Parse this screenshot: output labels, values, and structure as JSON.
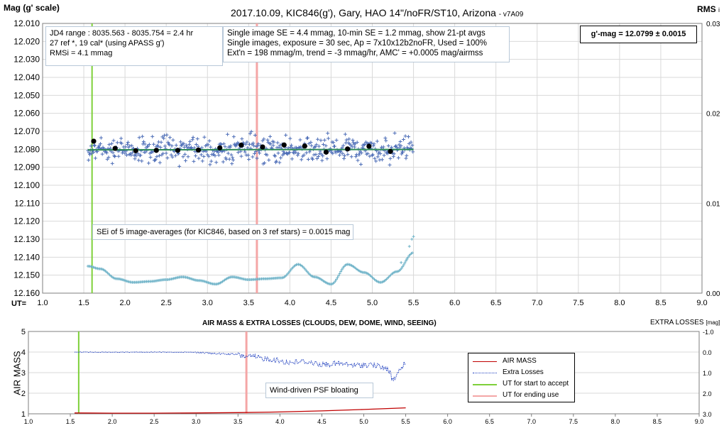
{
  "top_chart": {
    "title": "2017.10.09,  KIC846(g'),  Gary,  HAO  14\"/noFR/ST10,  Arizona",
    "version": "- v7A09",
    "y_left_label": "Mag (g' scale)",
    "y_right_label": "RMS",
    "y_right_label_suffix": "i",
    "x_label": "UT=",
    "info_box_1": [
      "JD4 range : 8035.563 - 8035.754 =  2.4  hr",
      "27 ref *, 19 cal* (using APASS g')",
      "RMSi = 4.1 mmag"
    ],
    "info_box_2": [
      "Single image SE = 4.4 mmag, 10-min SE = 1.2 mmag, show 21-pt avgs",
      "Single images, exposure = 30 sec, Ap = 7x10x12b2noFR, Used = 100%",
      "Ext'n = 198 mmag/m, trend = -3 mmag/hr, AMC' = +0.0005 mag/airmss"
    ],
    "result_box": "g'-mag = 12.0799 ± 0.0015",
    "sei_note": "SEi of 5 image-averages (for KIC846, based on 3 ref stars) = 0.0015 mag"
  },
  "bottom_chart": {
    "title": "AIR MASS & EXTRA LOSSES (CLOUDS, DEW, DOME, WIND, SEEING)",
    "y_left_label": "AIR MASS",
    "y_right_label": "EXTRA LOSSES",
    "y_right_unit": "[mag]",
    "annotation": "Wind-driven PSF bloating",
    "legend": [
      {
        "label": "AIR MASS",
        "color": "#c00000",
        "style": "solid"
      },
      {
        "label": "Extra Losses",
        "color": "#1f3fbf",
        "style": "dotted"
      },
      {
        "label": "UT for start to accept",
        "color": "#7ed03a",
        "style": "solid"
      },
      {
        "label": "UT for ending use",
        "color": "#f4a6a6",
        "style": "solid"
      }
    ]
  },
  "chart_data": [
    {
      "type": "scatter",
      "title": "2017.10.09,  KIC846(g'),  Gary,  HAO  14\"/noFR/ST10,  Arizona",
      "xlabel": "UT=",
      "ylabel": "Mag (g' scale)",
      "y2label": "RMS i",
      "xlim": [
        1.0,
        9.0
      ],
      "x_ticks": [
        "1.0",
        "1.5",
        "2.0",
        "2.5",
        "3.0",
        "3.5",
        "4.0",
        "4.5",
        "5.0",
        "5.5",
        "6.0",
        "6.5",
        "7.0",
        "7.5",
        "8.0",
        "8.5",
        "9.0"
      ],
      "ylim": [
        12.16,
        12.01
      ],
      "y_ticks": [
        "12.010",
        "12.020",
        "12.030",
        "12.040",
        "12.050",
        "12.060",
        "12.070",
        "12.080",
        "12.090",
        "12.100",
        "12.110",
        "12.120",
        "12.130",
        "12.140",
        "12.150",
        "12.160"
      ],
      "y2lim": [
        0.0,
        0.03
      ],
      "y2_ticks": [
        "0.03",
        "0.02",
        "0.01",
        "0.00"
      ],
      "grid": true,
      "colors": {
        "single": "#4f6fb8",
        "avg": "#000000",
        "fit": "#2e8b57",
        "rms": "#6fb3c8",
        "start": "#7ed03a",
        "end": "#f4a6a6"
      },
      "series": [
        {
          "name": "21-pt averages",
          "x": [
            1.62,
            1.88,
            2.13,
            2.38,
            2.64,
            2.89,
            3.15,
            3.41,
            3.67,
            3.93,
            4.18,
            4.44,
            4.7,
            4.96,
            5.22
          ],
          "values": [
            12.0755,
            12.0795,
            12.0808,
            12.0806,
            12.0806,
            12.0804,
            12.0792,
            12.0777,
            12.0787,
            12.0776,
            12.0782,
            12.0816,
            12.0798,
            12.0783,
            12.0812
          ]
        },
        {
          "name": "Single-image scatter",
          "x_range": [
            1.55,
            5.5
          ],
          "y_range": [
            12.066,
            12.092
          ]
        },
        {
          "name": "RMSi",
          "x": [
            1.55,
            1.7,
            1.9,
            2.1,
            2.3,
            2.5,
            2.7,
            2.9,
            3.1,
            3.3,
            3.5,
            3.7,
            3.9,
            4.1,
            4.3,
            4.5,
            4.7,
            4.9,
            5.1,
            5.3,
            5.5
          ],
          "values": [
            0.003,
            0.0027,
            0.0016,
            0.0012,
            0.0013,
            0.0015,
            0.0018,
            0.0014,
            0.001,
            0.0018,
            0.0015,
            0.0016,
            0.0017,
            0.0032,
            0.0018,
            0.001,
            0.0032,
            0.0023,
            0.0012,
            0.0024,
            0.0045
          ]
        }
      ],
      "fit_line": {
        "x": [
          1.55,
          5.5
        ],
        "values": [
          12.0803,
          12.0801
        ]
      },
      "start_ut": 1.6,
      "end_ut": 3.6
    },
    {
      "type": "line",
      "title": "AIR MASS & EXTRA LOSSES (CLOUDS, DEW, DOME, WIND, SEEING)",
      "xlim": [
        1.0,
        9.0
      ],
      "x_ticks": [
        "1.0",
        "1.5",
        "2.0",
        "2.5",
        "3.0",
        "3.5",
        "4.0",
        "4.5",
        "5.0",
        "5.5",
        "6.0",
        "6.5",
        "7.0",
        "7.5",
        "8.0",
        "8.5",
        "9.0"
      ],
      "ylabel": "AIR MASS",
      "ylim": [
        1,
        5
      ],
      "y_ticks": [
        "5",
        "4",
        "3",
        "2",
        "1"
      ],
      "y2label": "EXTRA LOSSES [mag]",
      "y2lim": [
        -1.0,
        3.0
      ],
      "y2_ticks": [
        "-1.0",
        "0.0",
        "1.0",
        "2.0",
        "3.0"
      ],
      "series": [
        {
          "name": "AIR MASS",
          "x": [
            1.55,
            2.0,
            2.5,
            3.0,
            3.5,
            4.0,
            4.5,
            5.0,
            5.5
          ],
          "values": [
            1.04,
            1.03,
            1.03,
            1.04,
            1.06,
            1.09,
            1.14,
            1.21,
            1.29
          ]
        },
        {
          "name": "Extra Losses",
          "x": [
            1.55,
            2.0,
            2.5,
            3.0,
            3.2,
            3.5,
            3.7,
            3.9,
            4.1,
            4.3,
            4.5,
            4.7,
            4.9,
            5.1,
            5.3,
            5.35,
            5.4,
            5.5
          ],
          "values": [
            0.0,
            0.0,
            0.0,
            0.0,
            0.05,
            0.1,
            0.2,
            0.3,
            0.45,
            0.4,
            0.55,
            0.5,
            0.6,
            0.55,
            0.8,
            1.4,
            1.0,
            0.4
          ]
        }
      ],
      "start_ut": 1.6,
      "end_ut": 3.6
    }
  ]
}
